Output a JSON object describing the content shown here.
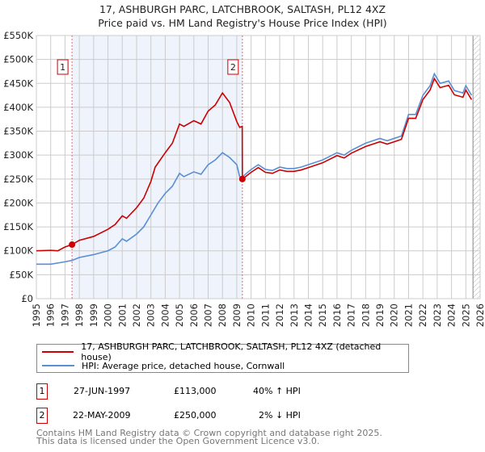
{
  "title": "17, ASHBURGH PARC, LATCHBROOK, SALTASH, PL12 4XZ",
  "subtitle": "Price paid vs. HM Land Registry's House Price Index (HPI)",
  "chart_data": {
    "type": "line",
    "ylim": [
      0,
      550000
    ],
    "xlim": [
      1995,
      2026
    ],
    "y_ticks": [
      {
        "v": 0,
        "label": "£0"
      },
      {
        "v": 50000,
        "label": "£50K"
      },
      {
        "v": 100000,
        "label": "£100K"
      },
      {
        "v": 150000,
        "label": "£150K"
      },
      {
        "v": 200000,
        "label": "£200K"
      },
      {
        "v": 250000,
        "label": "£250K"
      },
      {
        "v": 300000,
        "label": "£300K"
      },
      {
        "v": 350000,
        "label": "£350K"
      },
      {
        "v": 400000,
        "label": "£400K"
      },
      {
        "v": 450000,
        "label": "£450K"
      },
      {
        "v": 500000,
        "label": "£500K"
      },
      {
        "v": 550000,
        "label": "£550K"
      }
    ],
    "x_ticks": [
      "1995",
      "1996",
      "1997",
      "1998",
      "1999",
      "2000",
      "2001",
      "2002",
      "2003",
      "2004",
      "2005",
      "2006",
      "2007",
      "2008",
      "2009",
      "2010",
      "2011",
      "2012",
      "2013",
      "2014",
      "2015",
      "2016",
      "2017",
      "2018",
      "2019",
      "2020",
      "2021",
      "2022",
      "2023",
      "2024",
      "2025",
      "2026"
    ],
    "grid": true,
    "shaded_range": [
      1997.49,
      2009.39
    ],
    "hatched_from": 2025.5,
    "series": [
      {
        "name": "17, ASHBURGH PARC, LATCHBROOK, SALTASH, PL12 4XZ (detached house)",
        "color": "#cc0000",
        "x": [
          1995,
          1996,
          1996.5,
          1997,
          1997.49,
          1998,
          1999,
          2000,
          2000.5,
          2001,
          2001.3,
          2002,
          2002.5,
          2003,
          2003.3,
          2004,
          2004.5,
          2005,
          2005.3,
          2006,
          2006.5,
          2007,
          2007.5,
          2008,
          2008.5,
          2009,
          2009.2,
          2009.38,
          2009.39,
          2010,
          2010.5,
          2011,
          2011.5,
          2012,
          2012.5,
          2013,
          2013.5,
          2014,
          2015,
          2016,
          2016.5,
          2017,
          2018,
          2019,
          2019.5,
          2020,
          2020.5,
          2021,
          2021.5,
          2022,
          2022.5,
          2022.8,
          2023.2,
          2023.8,
          2024.2,
          2024.8,
          2025,
          2025.4
        ],
        "y": [
          100000,
          101000,
          100000,
          108000,
          113000,
          122000,
          130000,
          145000,
          155000,
          173000,
          168000,
          190000,
          210000,
          245000,
          275000,
          305000,
          325000,
          365000,
          360000,
          372000,
          365000,
          392000,
          405000,
          430000,
          410000,
          370000,
          358000,
          360000,
          250000,
          264000,
          274000,
          264000,
          262000,
          269000,
          266000,
          266000,
          269000,
          274000,
          284000,
          299000,
          294000,
          304000,
          318000,
          328000,
          323000,
          328000,
          333000,
          377000,
          377000,
          416000,
          436000,
          460000,
          441000,
          446000,
          426000,
          421000,
          436000,
          416000
        ]
      },
      {
        "name": "HPI: Average price, detached house, Cornwall",
        "color": "#5b8fd4",
        "x": [
          1995,
          1996,
          1997,
          1997.5,
          1998,
          1999,
          2000,
          2000.5,
          2001,
          2001.3,
          2002,
          2002.5,
          2003,
          2003.5,
          2004,
          2004.5,
          2005,
          2005.3,
          2006,
          2006.5,
          2007,
          2007.5,
          2008,
          2008.5,
          2009,
          2009.2,
          2009.4,
          2010,
          2010.5,
          2011,
          2011.5,
          2012,
          2012.5,
          2013,
          2013.5,
          2014,
          2015,
          2016,
          2016.5,
          2017,
          2018,
          2019,
          2019.5,
          2020,
          2020.5,
          2021,
          2021.5,
          2022,
          2022.5,
          2022.8,
          2023.2,
          2023.8,
          2024.2,
          2024.8,
          2025,
          2025.4
        ],
        "y": [
          72000,
          72000,
          77000,
          80000,
          86000,
          92000,
          100000,
          108000,
          125000,
          120000,
          135000,
          150000,
          175000,
          200000,
          220000,
          235000,
          262000,
          255000,
          265000,
          260000,
          280000,
          290000,
          305000,
          295000,
          280000,
          255000,
          255000,
          270000,
          280000,
          270000,
          268000,
          275000,
          272000,
          272000,
          275000,
          280000,
          290000,
          305000,
          300000,
          310000,
          325000,
          335000,
          330000,
          335000,
          340000,
          385000,
          385000,
          425000,
          445000,
          470000,
          450000,
          455000,
          435000,
          430000,
          445000,
          425000
        ]
      }
    ],
    "annotations": [
      {
        "label": "1",
        "x": 1997.49,
        "y": 113000
      },
      {
        "label": "2",
        "x": 2009.39,
        "y": 250000
      }
    ]
  },
  "legend": {
    "property": "17, ASHBURGH PARC, LATCHBROOK, SALTASH, PL12 4XZ (detached house)",
    "hpi": "HPI: Average price, detached house, Cornwall"
  },
  "sales": [
    {
      "num": "1",
      "date": "27-JUN-1997",
      "price": "£113,000",
      "hpi": "40% ↑ HPI"
    },
    {
      "num": "2",
      "date": "22-MAY-2009",
      "price": "£250,000",
      "hpi": "2% ↓ HPI"
    }
  ],
  "footer": {
    "line1": "Contains HM Land Registry data © Crown copyright and database right 2025.",
    "line2": "This data is licensed under the Open Government Licence v3.0."
  }
}
